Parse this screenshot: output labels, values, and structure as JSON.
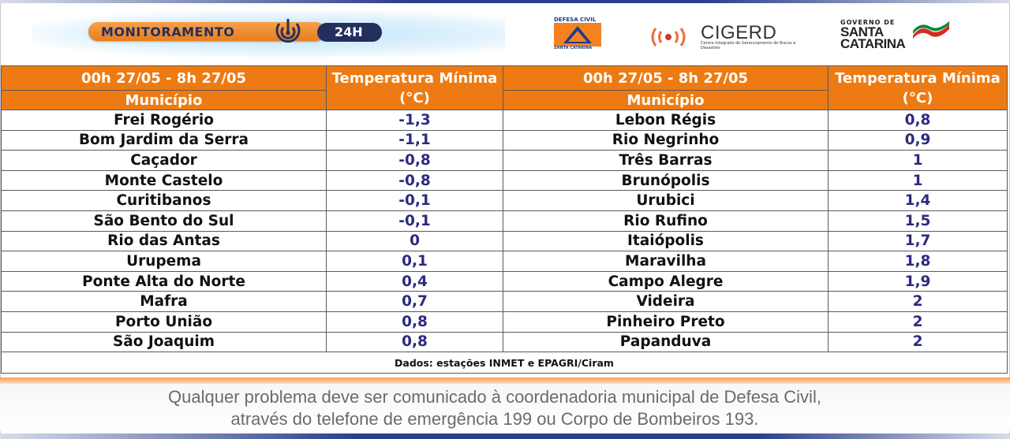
{
  "header": {
    "monitor_label": "MONITORAMENTO",
    "monitor_badge": "24H",
    "defesa_civil_top": "DEFESA CIVIL",
    "defesa_civil_bottom": "SANTA CATARINA",
    "cigerd_label": "CIGERD",
    "cigerd_sub": "Centro Integrado de Gerenciamento de Riscos e Desastres",
    "gov_top": "GOVERNO DE",
    "gov_line1": "SANTA",
    "gov_line2": "CATARINA"
  },
  "table": {
    "left": {
      "period": "00h 27/05 - 8h 27/05",
      "col_municipio": "Município",
      "col_temp": "Temperatura Mínima  (°C)",
      "rows": [
        {
          "municipio": "Frei Rogério",
          "temp": "-1,3"
        },
        {
          "municipio": "Bom Jardim da Serra",
          "temp": "-1,1"
        },
        {
          "municipio": "Caçador",
          "temp": "-0,8"
        },
        {
          "municipio": "Monte Castelo",
          "temp": "-0,8"
        },
        {
          "municipio": "Curitibanos",
          "temp": "-0,1"
        },
        {
          "municipio": "São Bento do Sul",
          "temp": "-0,1"
        },
        {
          "municipio": "Rio das Antas",
          "temp": "0"
        },
        {
          "municipio": "Urupema",
          "temp": "0,1"
        },
        {
          "municipio": "Ponte Alta do Norte",
          "temp": "0,4"
        },
        {
          "municipio": "Mafra",
          "temp": "0,7"
        },
        {
          "municipio": "Porto União",
          "temp": "0,8"
        },
        {
          "municipio": "São Joaquim",
          "temp": "0,8"
        }
      ]
    },
    "right": {
      "period": "00h 27/05 - 8h 27/05",
      "col_municipio": "Município",
      "col_temp": "Temperatura Mínima  (°C)",
      "rows": [
        {
          "municipio": "Lebon Régis",
          "temp": "0,8"
        },
        {
          "municipio": "Rio Negrinho",
          "temp": "0,9"
        },
        {
          "municipio": "Três Barras",
          "temp": "1"
        },
        {
          "municipio": "Brunópolis",
          "temp": "1"
        },
        {
          "municipio": "Urubici",
          "temp": "1,4"
        },
        {
          "municipio": "Rio Rufino",
          "temp": "1,5"
        },
        {
          "municipio": "Itaiópolis",
          "temp": "1,7"
        },
        {
          "municipio": "Maravilha",
          "temp": "1,8"
        },
        {
          "municipio": "Campo Alegre",
          "temp": "1,9"
        },
        {
          "municipio": "Videira",
          "temp": "2"
        },
        {
          "municipio": "Pinheiro Preto",
          "temp": "2"
        },
        {
          "municipio": "Papanduva",
          "temp": "2"
        }
      ]
    },
    "footer": "Dados: estações INMET e EPAGRI/Ciram"
  },
  "notice": {
    "line1": "Qualquer problema deve ser comunicado à coordenadoria municipal de Defesa Civil,",
    "line2": "através do telefone de emergência 199 ou Corpo de Bombeiros 193."
  },
  "colors": {
    "orange": "#ed7a12",
    "navy": "#23305e",
    "temp_text": "#2b2b80"
  }
}
